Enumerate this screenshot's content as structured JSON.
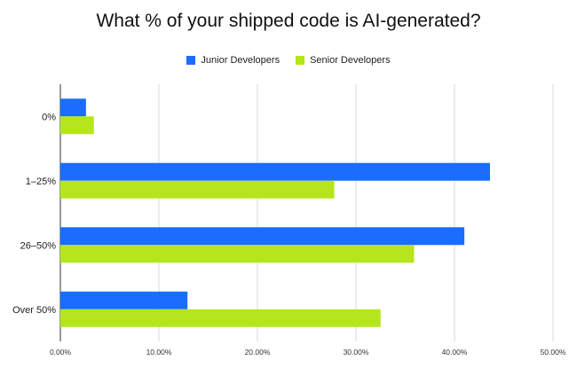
{
  "chart_data": {
    "type": "bar",
    "orientation": "horizontal",
    "title": "What % of your shipped code is AI-generated?",
    "categories": [
      "0%",
      "1–25%",
      "26–50%",
      "Over 50%"
    ],
    "series": [
      {
        "name": "Junior Developers",
        "color": "#1a6dff",
        "values": [
          2.6,
          43.6,
          41.0,
          12.9
        ]
      },
      {
        "name": "Senior Developers",
        "color": "#b5e61d",
        "values": [
          3.4,
          27.8,
          35.9,
          32.5
        ]
      }
    ],
    "x_ticks": [
      "0.00%",
      "10.00%",
      "20.00%",
      "30.00%",
      "40.00%",
      "50.00%"
    ],
    "xlim": [
      0,
      50
    ],
    "grid": true,
    "legend_position": "top"
  }
}
